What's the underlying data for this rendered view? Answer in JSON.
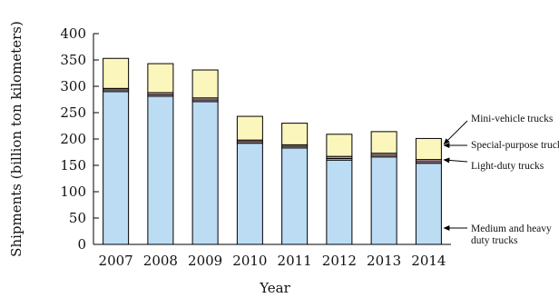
{
  "chart_data": {
    "type": "bar",
    "stacked": true,
    "title": "",
    "xlabel": "Year",
    "ylabel": "Shipments (billion ton kilometers)",
    "ylim": [
      0,
      400
    ],
    "yticks": [
      0,
      50,
      100,
      150,
      200,
      250,
      300,
      350,
      400
    ],
    "grid": false,
    "legend": "right",
    "categories": [
      "2007",
      "2008",
      "2009",
      "2010",
      "2011",
      "2012",
      "2013",
      "2014"
    ],
    "series": [
      {
        "name": "Medium and heavy duty trucks",
        "color": "#bcdcf4",
        "values": [
          290,
          281,
          271,
          192,
          183,
          160,
          166,
          154
        ]
      },
      {
        "name": "Light-duty trucks",
        "color": "#f2d6d6",
        "values": [
          3,
          3,
          3,
          3,
          3,
          3,
          3,
          3
        ]
      },
      {
        "name": "Special-purpose trucks",
        "color": "#c9a0b0",
        "values": [
          3,
          4,
          4,
          3,
          3,
          4,
          4,
          4
        ]
      },
      {
        "name": "Mini-vehicle trucks",
        "color": "#fbf7bc",
        "values": [
          57,
          55,
          53,
          45,
          41,
          42,
          41,
          40
        ]
      }
    ]
  }
}
